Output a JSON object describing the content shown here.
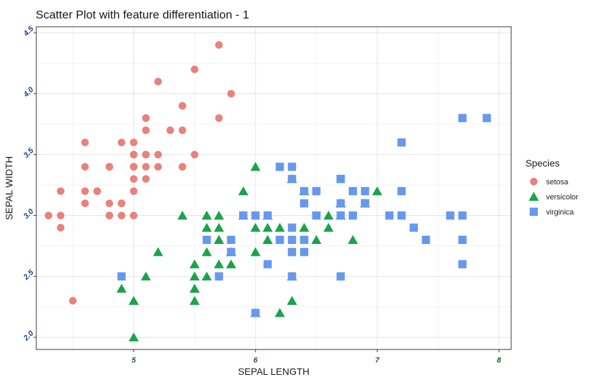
{
  "chart_data": {
    "type": "scatter",
    "title": "Scatter Plot with feature differentiation - 1",
    "xlabel": "SEPAL LENGTH",
    "ylabel": "SEPAL WIDTH",
    "xlim": [
      4.2,
      8.1
    ],
    "ylim": [
      1.9,
      4.55
    ],
    "xticks": [
      "5",
      "6",
      "7",
      "8"
    ],
    "yticks": [
      "2.0",
      "2.5",
      "3.0",
      "3.5",
      "4.0",
      "4.5"
    ],
    "grid": true,
    "legend": {
      "title": "Species",
      "position": "right",
      "entries": [
        "setosa",
        "versicolor",
        "virginica"
      ]
    },
    "series": [
      {
        "name": "setosa",
        "marker": "circle",
        "color": "#E8827A",
        "points": [
          [
            5.1,
            3.5
          ],
          [
            4.9,
            3.0
          ],
          [
            4.7,
            3.2
          ],
          [
            4.6,
            3.1
          ],
          [
            5.0,
            3.6
          ],
          [
            5.4,
            3.9
          ],
          [
            4.6,
            3.4
          ],
          [
            5.0,
            3.4
          ],
          [
            4.4,
            2.9
          ],
          [
            4.9,
            3.1
          ],
          [
            5.4,
            3.7
          ],
          [
            4.8,
            3.4
          ],
          [
            4.8,
            3.0
          ],
          [
            4.3,
            3.0
          ],
          [
            5.8,
            4.0
          ],
          [
            5.7,
            4.4
          ],
          [
            5.4,
            3.9
          ],
          [
            5.1,
            3.5
          ],
          [
            5.7,
            3.8
          ],
          [
            5.1,
            3.8
          ],
          [
            5.4,
            3.4
          ],
          [
            5.1,
            3.7
          ],
          [
            4.6,
            3.6
          ],
          [
            5.1,
            3.3
          ],
          [
            4.8,
            3.4
          ],
          [
            5.0,
            3.0
          ],
          [
            5.0,
            3.4
          ],
          [
            5.2,
            3.5
          ],
          [
            5.2,
            3.4
          ],
          [
            4.7,
            3.2
          ],
          [
            4.8,
            3.1
          ],
          [
            5.4,
            3.4
          ],
          [
            5.2,
            4.1
          ],
          [
            5.5,
            4.2
          ],
          [
            4.9,
            3.1
          ],
          [
            5.0,
            3.2
          ],
          [
            5.5,
            3.5
          ],
          [
            4.9,
            3.6
          ],
          [
            4.4,
            3.0
          ],
          [
            5.1,
            3.4
          ],
          [
            5.0,
            3.5
          ],
          [
            4.5,
            2.3
          ],
          [
            4.4,
            3.2
          ],
          [
            5.0,
            3.5
          ],
          [
            5.1,
            3.8
          ],
          [
            4.8,
            3.0
          ],
          [
            5.1,
            3.8
          ],
          [
            4.6,
            3.2
          ],
          [
            5.3,
            3.7
          ],
          [
            5.0,
            3.3
          ]
        ]
      },
      {
        "name": "versicolor",
        "marker": "triangle",
        "color": "#1AA34A",
        "points": [
          [
            7.0,
            3.2
          ],
          [
            6.4,
            3.2
          ],
          [
            6.9,
            3.1
          ],
          [
            5.5,
            2.3
          ],
          [
            6.5,
            2.8
          ],
          [
            5.7,
            2.8
          ],
          [
            6.3,
            3.3
          ],
          [
            4.9,
            2.4
          ],
          [
            6.6,
            2.9
          ],
          [
            5.2,
            2.7
          ],
          [
            5.0,
            2.0
          ],
          [
            5.9,
            3.0
          ],
          [
            6.0,
            2.2
          ],
          [
            6.1,
            2.9
          ],
          [
            5.6,
            2.9
          ],
          [
            6.7,
            3.1
          ],
          [
            5.6,
            3.0
          ],
          [
            5.8,
            2.7
          ],
          [
            6.2,
            2.2
          ],
          [
            5.6,
            2.5
          ],
          [
            5.9,
            3.2
          ],
          [
            6.1,
            2.8
          ],
          [
            6.3,
            2.5
          ],
          [
            6.1,
            2.8
          ],
          [
            6.4,
            2.9
          ],
          [
            6.6,
            3.0
          ],
          [
            6.8,
            2.8
          ],
          [
            6.7,
            3.0
          ],
          [
            6.0,
            2.9
          ],
          [
            5.7,
            2.6
          ],
          [
            5.5,
            2.4
          ],
          [
            5.5,
            2.4
          ],
          [
            5.8,
            2.7
          ],
          [
            6.0,
            2.7
          ],
          [
            5.4,
            3.0
          ],
          [
            6.0,
            3.4
          ],
          [
            6.7,
            3.1
          ],
          [
            6.3,
            2.3
          ],
          [
            5.6,
            3.0
          ],
          [
            5.5,
            2.5
          ],
          [
            5.5,
            2.6
          ],
          [
            6.1,
            3.0
          ],
          [
            5.8,
            2.6
          ],
          [
            5.0,
            2.3
          ],
          [
            5.6,
            2.7
          ],
          [
            5.7,
            3.0
          ],
          [
            5.7,
            2.9
          ],
          [
            6.2,
            2.9
          ],
          [
            5.1,
            2.5
          ],
          [
            5.7,
            2.8
          ]
        ]
      },
      {
        "name": "virginica",
        "marker": "square",
        "color": "#6699EE",
        "points": [
          [
            6.3,
            3.3
          ],
          [
            5.8,
            2.7
          ],
          [
            7.1,
            3.0
          ],
          [
            6.3,
            2.9
          ],
          [
            6.5,
            3.0
          ],
          [
            7.6,
            3.0
          ],
          [
            4.9,
            2.5
          ],
          [
            7.3,
            2.9
          ],
          [
            6.7,
            2.5
          ],
          [
            7.2,
            3.6
          ],
          [
            6.5,
            3.2
          ],
          [
            6.4,
            2.7
          ],
          [
            6.8,
            3.0
          ],
          [
            5.7,
            2.5
          ],
          [
            5.8,
            2.8
          ],
          [
            6.4,
            3.2
          ],
          [
            6.5,
            3.0
          ],
          [
            7.7,
            3.8
          ],
          [
            7.7,
            2.6
          ],
          [
            6.0,
            2.2
          ],
          [
            6.9,
            3.2
          ],
          [
            5.6,
            2.8
          ],
          [
            7.7,
            2.8
          ],
          [
            6.3,
            2.7
          ],
          [
            6.7,
            3.3
          ],
          [
            7.2,
            3.2
          ],
          [
            6.2,
            2.8
          ],
          [
            6.1,
            3.0
          ],
          [
            6.4,
            2.8
          ],
          [
            7.2,
            3.0
          ],
          [
            7.4,
            2.8
          ],
          [
            7.9,
            3.8
          ],
          [
            6.4,
            2.8
          ],
          [
            6.3,
            2.8
          ],
          [
            6.1,
            2.6
          ],
          [
            7.7,
            3.0
          ],
          [
            6.3,
            3.4
          ],
          [
            6.4,
            3.1
          ],
          [
            6.0,
            3.0
          ],
          [
            6.9,
            3.1
          ],
          [
            6.7,
            3.1
          ],
          [
            6.9,
            3.1
          ],
          [
            5.8,
            2.7
          ],
          [
            6.8,
            3.2
          ],
          [
            6.7,
            3.3
          ],
          [
            6.7,
            3.0
          ],
          [
            6.3,
            2.5
          ],
          [
            6.5,
            3.0
          ],
          [
            6.2,
            3.4
          ],
          [
            5.9,
            3.0
          ]
        ]
      }
    ]
  }
}
